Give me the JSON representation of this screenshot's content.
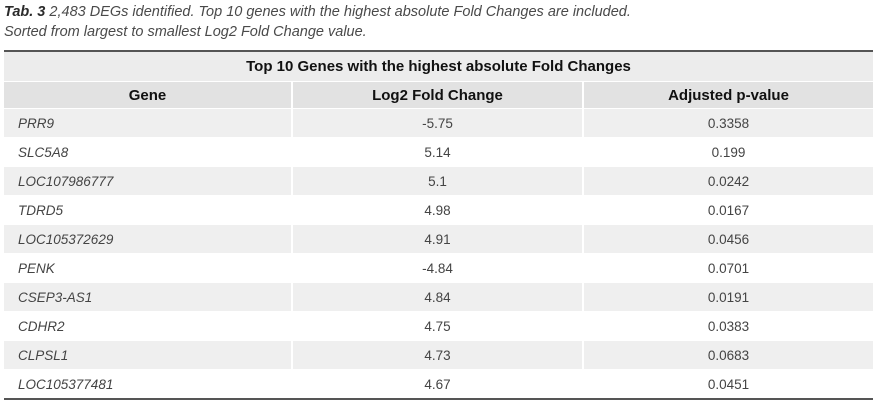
{
  "caption": {
    "label": "Tab. 3",
    "line1": "2,483 DEGs identified. Top 10 genes with the highest absolute Fold Changes are included.",
    "line2": "Sorted from largest to smallest Log2 Fold Change value."
  },
  "table": {
    "title": "Top 10 Genes with the highest absolute Fold Changes",
    "columns": [
      "Gene",
      "Log2 Fold Change",
      "Adjusted p-value"
    ],
    "rows": [
      [
        "PRR9",
        "-5.75",
        "0.3358"
      ],
      [
        "SLC5A8",
        "5.14",
        "0.199"
      ],
      [
        "LOC107986777",
        "5.1",
        "0.0242"
      ],
      [
        "TDRD5",
        "4.98",
        "0.0167"
      ],
      [
        "LOC105372629",
        "4.91",
        "0.0456"
      ],
      [
        "PENK",
        "-4.84",
        "0.0701"
      ],
      [
        "CSEP3-AS1",
        "4.84",
        "0.0191"
      ],
      [
        "CDHR2",
        "4.75",
        "0.0383"
      ],
      [
        "CLPSL1",
        "4.73",
        "0.0683"
      ],
      [
        "LOC105377481",
        "4.67",
        "0.0451"
      ]
    ]
  }
}
